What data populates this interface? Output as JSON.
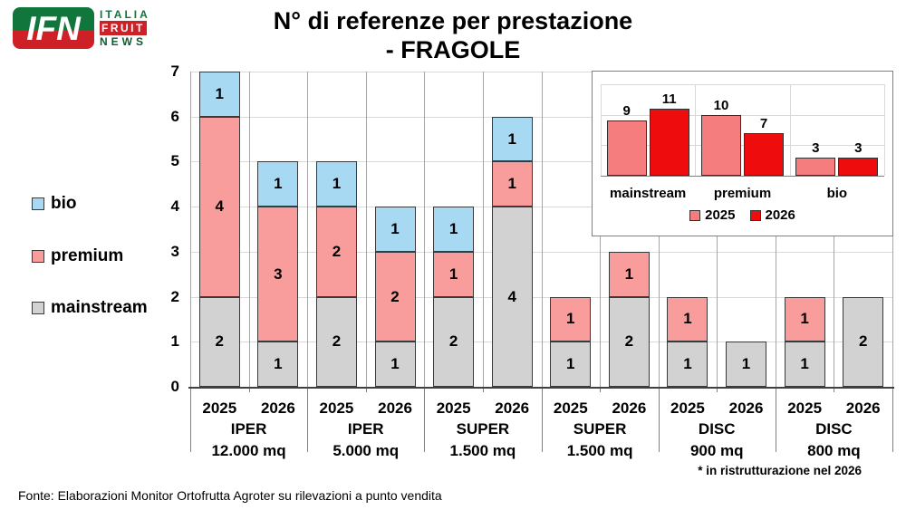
{
  "logo": {
    "badge": "IFN",
    "line1": "ITALIA",
    "line2": "FRUIT",
    "line3": "NEWS"
  },
  "title": {
    "line1": "N° di referenze per prestazione",
    "line2": "- FRAGOLE"
  },
  "legend": [
    {
      "label": "bio",
      "color": "#A8D9F2"
    },
    {
      "label": "premium",
      "color": "#F89C9C"
    },
    {
      "label": "mainstream",
      "color": "#D2D2D2"
    }
  ],
  "footnote": "* in ristrutturazione nel 2026",
  "source": "Fonte: Elaborazioni Monitor Ortofrutta Agroter su rilevazioni a punto vendita",
  "chart_data": [
    {
      "type": "bar",
      "subtype": "stacked",
      "title": "N° di referenze per prestazione - FRAGOLE",
      "ylabel": "",
      "ylim": [
        0,
        7
      ],
      "yticks": [
        0,
        1,
        2,
        3,
        4,
        5,
        6,
        7
      ],
      "grid": true,
      "series_order": [
        "mainstream",
        "premium",
        "bio"
      ],
      "colors": {
        "mainstream": "#D2D2D2",
        "premium": "#F89C9C",
        "bio": "#A8D9F2"
      },
      "groups": [
        {
          "name": "IPER",
          "size": "12.000 mq",
          "bars": [
            {
              "year": "2025",
              "mainstream": 2,
              "premium": 4,
              "bio": 1
            },
            {
              "year": "2026",
              "mainstream": 1,
              "premium": 3,
              "bio": 1
            }
          ]
        },
        {
          "name": "IPER",
          "size": "5.000 mq",
          "bars": [
            {
              "year": "2025",
              "mainstream": 2,
              "premium": 2,
              "bio": 1
            },
            {
              "year": "2026",
              "mainstream": 1,
              "premium": 2,
              "bio": 1
            }
          ]
        },
        {
          "name": "SUPER",
          "size": "1.500 mq",
          "bars": [
            {
              "year": "2025",
              "mainstream": 2,
              "premium": 1,
              "bio": 1
            },
            {
              "year": "2026",
              "mainstream": 4,
              "premium": 1,
              "bio": 1
            }
          ]
        },
        {
          "name": "SUPER",
          "size": "1.500 mq",
          "bars": [
            {
              "year": "2025",
              "mainstream": 1,
              "premium": 1,
              "bio": 0
            },
            {
              "year": "2026",
              "mainstream": 2,
              "premium": 1,
              "bio": 0
            }
          ]
        },
        {
          "name": "DISC",
          "size": "900 mq",
          "bars": [
            {
              "year": "2025",
              "mainstream": 1,
              "premium": 1,
              "bio": 0
            },
            {
              "year": "2026",
              "mainstream": 1,
              "premium": 0,
              "bio": 0
            }
          ]
        },
        {
          "name": "DISC",
          "size": "800 mq",
          "bars": [
            {
              "year": "2025",
              "mainstream": 1,
              "premium": 1,
              "bio": 0
            },
            {
              "year": "2026",
              "mainstream": 2,
              "premium": 0,
              "bio": 0
            }
          ]
        }
      ]
    },
    {
      "type": "bar",
      "subtype": "grouped",
      "title": "",
      "categories": [
        "mainstream",
        "premium",
        "bio"
      ],
      "series": [
        {
          "name": "2025",
          "values": [
            9,
            10,
            3
          ],
          "color": "#F57D7D"
        },
        {
          "name": "2026",
          "values": [
            11,
            7,
            3
          ],
          "color": "#EE0C0C"
        }
      ],
      "ylim": [
        0,
        15
      ],
      "gridlines": [
        5,
        10,
        15
      ],
      "legend_position": "bottom"
    }
  ]
}
